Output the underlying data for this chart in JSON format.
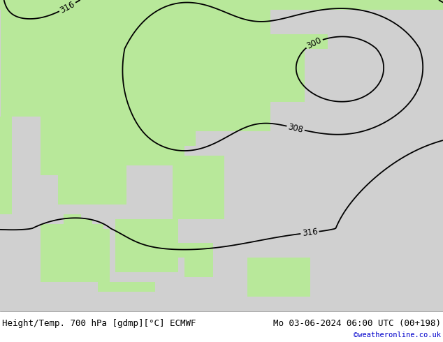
{
  "title_left": "Height/Temp. 700 hPa [gdmp][°C] ECMWF",
  "title_right": "Mo 03-06-2024 06:00 UTC (00+198)",
  "credit": "©weatheronline.co.uk",
  "land_color": "#b8e89a",
  "ocean_color": "#d0d0d0",
  "border_color": "#999999",
  "contour_color": "#000000",
  "contour_levels": [
    300,
    308,
    316
  ],
  "figsize": [
    6.34,
    4.9
  ],
  "dpi": 100,
  "font_size_title": 9.0,
  "font_size_credit": 7.5,
  "font_color_credit": "#0000cc",
  "lon_min": 88,
  "lon_max": 165,
  "lat_min": -12,
  "lat_max": 52,
  "contour_label_fontsize": 8.5
}
